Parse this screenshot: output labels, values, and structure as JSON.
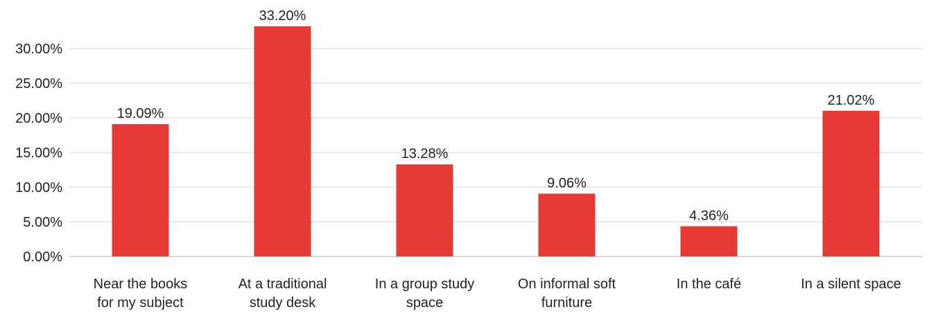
{
  "chart_data": {
    "type": "bar",
    "categories": [
      [
        "Near the books",
        "for my subject"
      ],
      [
        "At a traditional",
        "study desk"
      ],
      [
        "In a group study",
        "space"
      ],
      [
        "On informal soft",
        "furniture"
      ],
      [
        "In the café"
      ],
      [
        "In a silent space"
      ]
    ],
    "values": [
      19.09,
      33.2,
      13.28,
      9.06,
      4.36,
      21.02
    ],
    "value_labels": [
      "19.09%",
      "33.20%",
      "13.28%",
      "9.06%",
      "4.36%",
      "21.02%"
    ],
    "y_ticks": [
      0,
      5,
      10,
      15,
      20,
      25,
      30
    ],
    "y_tick_labels": [
      "0.00%",
      "5.00%",
      "10.00%",
      "15.00%",
      "20.00%",
      "25.00%",
      "30.00%"
    ],
    "ylim": [
      0,
      35
    ],
    "grid": true,
    "bar_color": "#e53935",
    "title": "",
    "xlabel": "",
    "ylabel": ""
  }
}
